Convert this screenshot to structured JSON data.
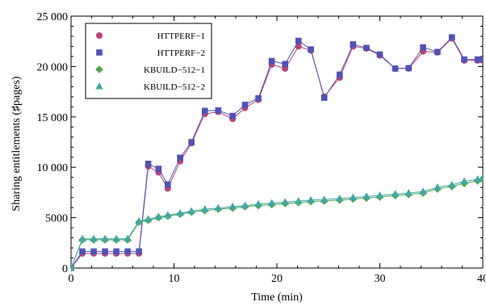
{
  "chart_data": {
    "type": "line",
    "xlabel": "Time (min)",
    "ylabel": "Sharing entitlements (♯pages)",
    "xlim": [
      0,
      40
    ],
    "ylim": [
      0,
      25000
    ],
    "x_ticks": [
      0,
      10,
      20,
      30,
      40
    ],
    "x_tick_labels": [
      "0",
      "10",
      "20",
      "30",
      "40"
    ],
    "y_ticks": [
      0,
      5000,
      10000,
      15000,
      20000,
      25000
    ],
    "y_tick_labels": [
      "0",
      "5000",
      "10 000",
      "15 000",
      "20 000",
      "25 000"
    ],
    "grid": false,
    "legend_position": "top-left",
    "x": [
      0,
      1.1,
      2.2,
      3.3,
      4.4,
      5.5,
      6.6,
      7.5,
      8.5,
      9.4,
      10.6,
      11.7,
      13.0,
      14.3,
      15.7,
      16.9,
      18.2,
      19.5,
      20.8,
      22.1,
      23.3,
      24.6,
      26.1,
      27.4,
      28.7,
      30.0,
      31.5,
      32.8,
      34.2,
      35.6,
      37.0,
      38.2,
      39.5,
      40.0
    ],
    "series": [
      {
        "name": "HTTPERF−1",
        "marker": "circle",
        "color": "#b5457a",
        "values": [
          0,
          1450,
          1450,
          1450,
          1450,
          1450,
          1450,
          10100,
          9500,
          7900,
          10600,
          12400,
          15300,
          15500,
          14800,
          15900,
          16700,
          20200,
          19800,
          22000,
          21600,
          17000,
          18900,
          22000,
          21800,
          21100,
          19800,
          19800,
          21500,
          21400,
          22800,
          20600,
          20600,
          20600
        ]
      },
      {
        "name": "HTTPERF−2",
        "marker": "square",
        "color": "#5252b2",
        "values": [
          0,
          1650,
          1650,
          1650,
          1650,
          1650,
          1650,
          10350,
          9850,
          8300,
          10950,
          12500,
          15600,
          15650,
          15100,
          16200,
          16850,
          20550,
          20250,
          22550,
          21700,
          16900,
          19200,
          22200,
          21850,
          21200,
          19800,
          19850,
          21900,
          21450,
          22900,
          20700,
          20700,
          20700
        ]
      },
      {
        "name": "KBUILD−512−1",
        "marker": "diamond",
        "color": "#52a552",
        "values": [
          0,
          2800,
          2800,
          2800,
          2800,
          2800,
          4550,
          4750,
          5000,
          5150,
          5350,
          5550,
          5700,
          5850,
          5950,
          6100,
          6200,
          6300,
          6400,
          6500,
          6600,
          6650,
          6750,
          6850,
          6950,
          7050,
          7200,
          7300,
          7450,
          7850,
          8100,
          8400,
          8650,
          8800
        ]
      },
      {
        "name": "KBUILD−512−2",
        "marker": "triangle",
        "color": "#44a7a3",
        "values": [
          0,
          2900,
          2900,
          2900,
          2900,
          2900,
          4650,
          4850,
          5100,
          5250,
          5450,
          5650,
          5850,
          5950,
          6100,
          6200,
          6350,
          6450,
          6550,
          6650,
          6750,
          6800,
          6900,
          7000,
          7100,
          7200,
          7350,
          7450,
          7600,
          8000,
          8250,
          8600,
          8800,
          8950
        ]
      }
    ]
  }
}
